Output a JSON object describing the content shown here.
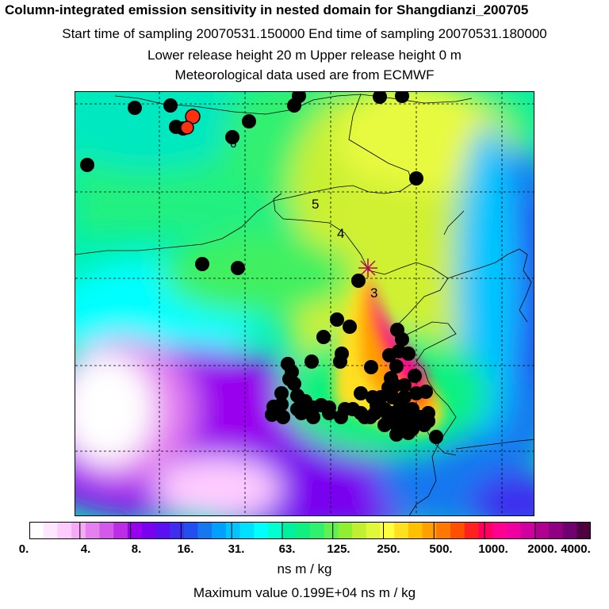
{
  "header": {
    "title": "Column-integrated emission sensitivity in nested domain for Shangdianzi_200705",
    "line2": "Start time of sampling 20070531.150000     End time of sampling 20070531.180000",
    "line3": "Lower release height   20 m          Upper release height    0 m",
    "line4": "Meteorological data used are from ECMWF"
  },
  "map": {
    "time_labels": [
      "6",
      "5",
      "4",
      "3"
    ],
    "release_marker_icon": "star-marker-icon",
    "marker_fill": "#000000",
    "highlight_fill": "#ff3010"
  },
  "colorbar": {
    "tick_labels": [
      "0.",
      "4.",
      "8.",
      "16.",
      "31.",
      "63.",
      "125.",
      "250.",
      "500.",
      "1000.",
      "2000.",
      "4000."
    ],
    "colors": [
      "#ffffff",
      "#ffe6ff",
      "#ffccff",
      "#f4aaf4",
      "#e580f0",
      "#d35ae8",
      "#bb2ee6",
      "#9900ee",
      "#7a00f0",
      "#5a10f0",
      "#3e2ef0",
      "#2250f0",
      "#1478f0",
      "#00a0ff",
      "#00c4ff",
      "#00e0ff",
      "#00ffff",
      "#00ffd0",
      "#00f0a0",
      "#10f080",
      "#30f070",
      "#60f050",
      "#90f030",
      "#c0f030",
      "#e0f838",
      "#ffff40",
      "#ffe020",
      "#ffc000",
      "#ffa000",
      "#ff7800",
      "#ff5000",
      "#ff2020",
      "#ff0060",
      "#ff0090",
      "#f000a0",
      "#d000a0",
      "#b00090",
      "#900080",
      "#700070",
      "#500040"
    ],
    "units": "ns m / kg"
  },
  "footer": {
    "max_value": "Maximum value  0.199E+04 ns m / kg"
  }
}
